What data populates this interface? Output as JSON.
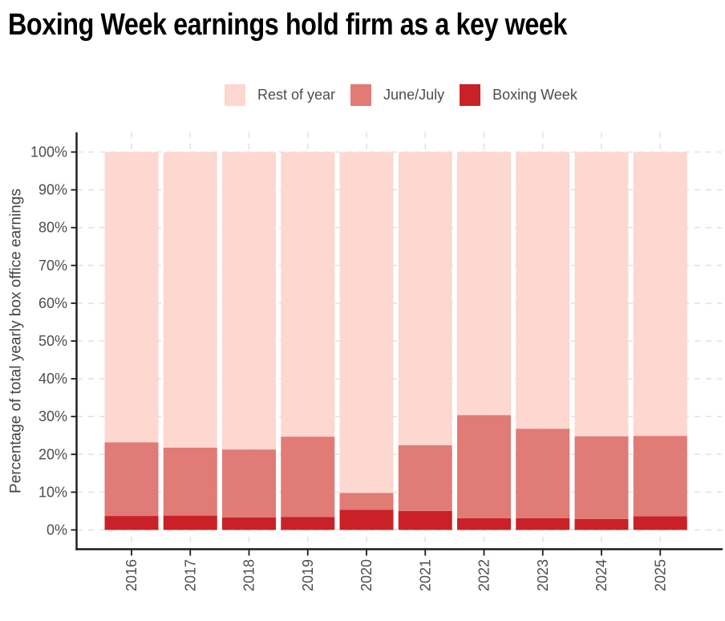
{
  "title": "Boxing Week earnings hold firm as a key week",
  "legend": {
    "items": [
      {
        "label": "Rest of year",
        "color": "#fcd8d0"
      },
      {
        "label": "June/July",
        "color": "#e07b76"
      },
      {
        "label": "Boxing Week",
        "color": "#c92127"
      }
    ]
  },
  "axis": {
    "y_title": "Percentage of total yearly box office earnings",
    "y_tick_labels": [
      "0%",
      "10%",
      "20%",
      "30%",
      "40%",
      "50%",
      "60%",
      "70%",
      "80%",
      "90%",
      "100%"
    ]
  },
  "colors": {
    "rest_of_year": "#fcd8d0",
    "june_july": "#e07b76",
    "boxing_week": "#c92127",
    "gridline": "#e2e2e2",
    "axis_line": "#1a1a1a",
    "tick_text": "#4d4d4d",
    "axis_title_text": "#454545",
    "title_text": "#000000"
  },
  "chart_data": {
    "type": "bar",
    "stacked": true,
    "title": "Boxing Week earnings hold firm as a key week",
    "ylabel": "Percentage of total yearly box office earnings",
    "ylim": [
      0,
      100
    ],
    "ytick_step": 10,
    "grid": "dashed horizontal every 10% and dashed vertical at bar centers",
    "legend_position": "top-center",
    "categories": [
      "2016",
      "2017",
      "2018",
      "2019",
      "2020",
      "2021",
      "2022",
      "2023",
      "2024",
      "2025"
    ],
    "series": [
      {
        "name": "Boxing Week",
        "color": "#c92127",
        "values": [
          3.7,
          3.8,
          3.3,
          3.4,
          5.3,
          5.0,
          3.1,
          3.1,
          2.9,
          3.6
        ]
      },
      {
        "name": "June/July",
        "color": "#e07b76",
        "values": [
          19.5,
          18.0,
          18.0,
          21.3,
          4.5,
          17.4,
          27.3,
          23.7,
          21.9,
          21.3
        ]
      },
      {
        "name": "Rest of year",
        "color": "#fcd8d0",
        "values": [
          76.8,
          78.2,
          78.7,
          75.3,
          90.2,
          77.6,
          69.6,
          73.2,
          75.2,
          75.1
        ]
      }
    ]
  }
}
